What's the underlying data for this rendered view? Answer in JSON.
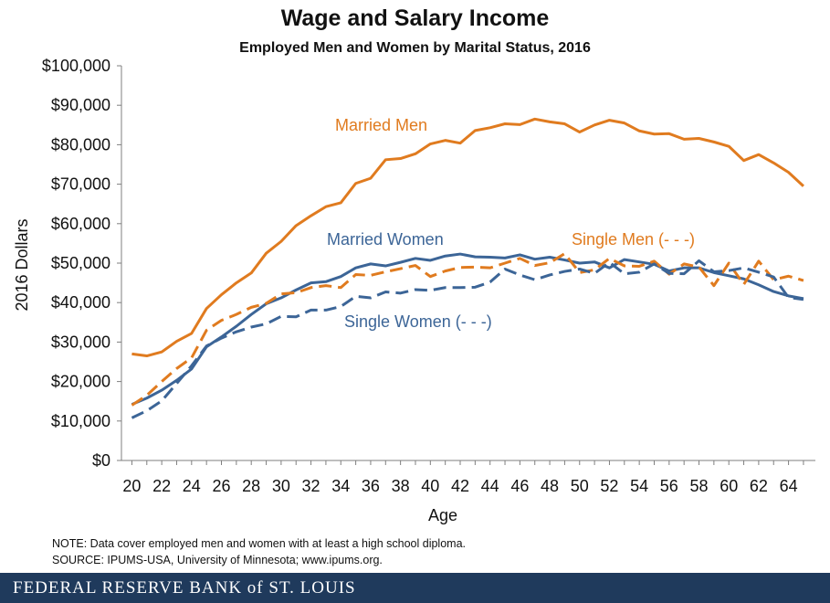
{
  "title": "Wage and Salary Income",
  "subtitle": "Employed Men and Women by Marital Status, 2016",
  "note": "NOTE: Data cover employed men and women with at least a high school diploma.",
  "source": "SOURCE: IPUMS-USA,  University of Minnesota; www.ipums.org.",
  "footer": "FEDERAL RESERVE BANK of ST. LOUIS",
  "chart_data": {
    "type": "line",
    "xlabel": "Age",
    "ylabel": "2016 Dollars",
    "xlim": [
      20,
      65
    ],
    "ylim": [
      0,
      100000
    ],
    "x_ticks": [
      20,
      22,
      24,
      26,
      28,
      30,
      32,
      34,
      36,
      38,
      40,
      42,
      44,
      46,
      48,
      50,
      52,
      54,
      56,
      58,
      60,
      62,
      64
    ],
    "y_ticks": [
      "$0",
      "$10,000",
      "$20,000",
      "$30,000",
      "$40,000",
      "$50,000",
      "$60,000",
      "$70,000",
      "$80,000",
      "$90,000",
      "$100,000"
    ],
    "grid": false,
    "x": [
      20,
      21,
      22,
      23,
      24,
      25,
      26,
      27,
      28,
      29,
      30,
      31,
      32,
      33,
      34,
      35,
      36,
      37,
      38,
      39,
      40,
      41,
      42,
      43,
      44,
      45,
      46,
      47,
      48,
      49,
      50,
      51,
      52,
      53,
      54,
      55,
      56,
      57,
      58,
      59,
      60,
      61,
      62,
      63,
      64,
      65
    ],
    "series": [
      {
        "name": "Married Men",
        "color": "#e07b1f",
        "dash": false,
        "values": [
          27000,
          26500,
          27500,
          30200,
          32200,
          38500,
          42000,
          45000,
          47500,
          52500,
          55500,
          59500,
          62000,
          64300,
          65300,
          70200,
          71500,
          76200,
          76500,
          77700,
          80200,
          81100,
          80400,
          83600,
          84300,
          85300,
          85100,
          86500,
          85800,
          85300,
          83200,
          85000,
          86200,
          85500,
          83500,
          82700,
          82800,
          81400,
          81600,
          80700,
          79600,
          76000,
          77500,
          75400,
          73000,
          69500
        ],
        "label": "Married Men"
      },
      {
        "name": "Married Women",
        "color": "#3c6597",
        "dash": false,
        "values": [
          14200,
          15800,
          17800,
          20300,
          23200,
          28800,
          31300,
          34000,
          37000,
          39700,
          41200,
          43200,
          45000,
          45300,
          46600,
          48800,
          49800,
          49300,
          50200,
          51200,
          50700,
          51800,
          52300,
          51600,
          51500,
          51300,
          52100,
          51000,
          51500,
          50800,
          50000,
          50300,
          48800,
          50900,
          50300,
          49700,
          48000,
          48800,
          48800,
          47600,
          46800,
          46000,
          44500,
          42800,
          41700,
          41000
        ],
        "label": "Married Women"
      },
      {
        "name": "Single Men",
        "color": "#e07b1f",
        "dash": true,
        "values": [
          14000,
          16500,
          20000,
          23300,
          26000,
          33000,
          35500,
          37000,
          38800,
          39800,
          42200,
          42500,
          43800,
          44300,
          43800,
          47100,
          46900,
          47800,
          48600,
          49400,
          46600,
          48000,
          48900,
          49000,
          48800,
          50000,
          51200,
          49400,
          50100,
          52400,
          47600,
          48300,
          51200,
          49300,
          49200,
          50500,
          47200,
          49800,
          49000,
          44300,
          50000,
          44600,
          50500,
          45800,
          46700,
          45600
        ],
        "label": "Single Men (- - -)"
      },
      {
        "name": "Single Women",
        "color": "#3c6597",
        "dash": true,
        "values": [
          10800,
          12600,
          15100,
          19500,
          24000,
          29000,
          31000,
          32600,
          33800,
          34600,
          36500,
          36400,
          38100,
          38100,
          39000,
          41600,
          41200,
          42700,
          42400,
          43300,
          43100,
          43800,
          43800,
          43900,
          45200,
          48500,
          47000,
          45800,
          47000,
          47900,
          48500,
          47400,
          50200,
          47300,
          47700,
          49800,
          47400,
          47300,
          50600,
          47800,
          48100,
          48800,
          47700,
          46500,
          41300,
          40800
        ],
        "label": "Single Women (- - -)"
      }
    ]
  }
}
